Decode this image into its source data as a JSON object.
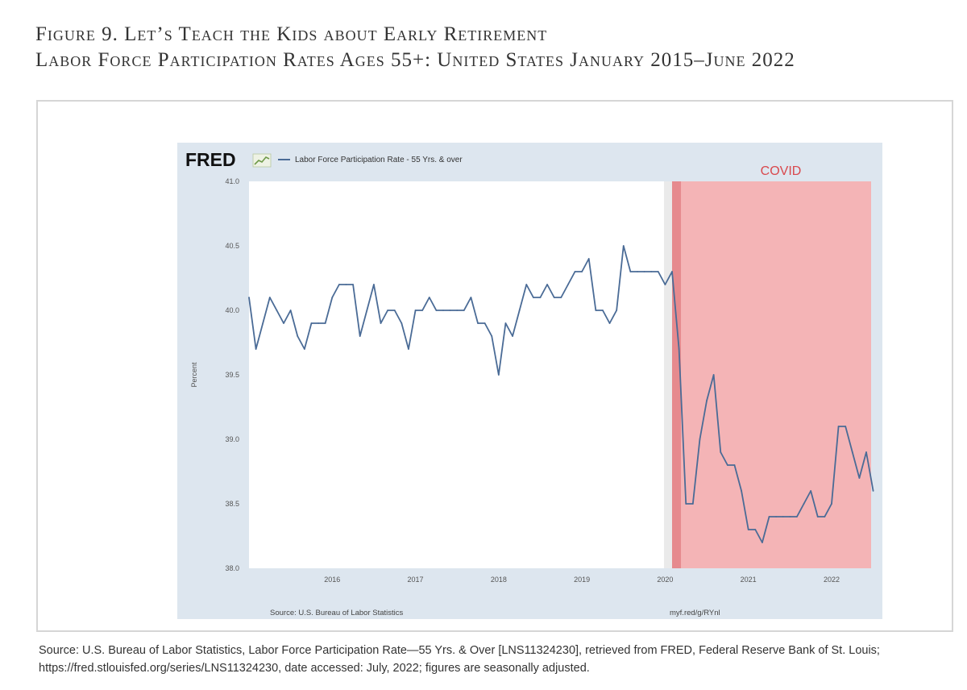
{
  "figure": {
    "title": "Figure 9. Let’s Teach the Kids about Early Retirement",
    "subtitle": "Labor Force Participation Rates Ages 55+: United States January 2015–June 2022",
    "source_note": "Source: U.S. Bureau of Labor Statistics, Labor Force Participation Rate—55 Yrs. & Over [LNS11324230], retrieved from FRED, Federal Reserve Bank of St. Louis; https://fred.stlouisfed.org/series/LNS11324230, date accessed: July, 2022; figures are seasonally adjusted."
  },
  "chart_data": {
    "type": "line",
    "brand": "FRED",
    "title": "",
    "xlabel": "",
    "ylabel": "Percent",
    "ylim": [
      38.0,
      41.0
    ],
    "yticks": [
      "38.0",
      "38.5",
      "39.0",
      "39.5",
      "40.0",
      "40.5",
      "41.0"
    ],
    "xlim": [
      "2015-01",
      "2022-06"
    ],
    "xticks": [
      {
        "label": "2016",
        "date": "2016-01"
      },
      {
        "label": "2017",
        "date": "2017-01"
      },
      {
        "label": "2018",
        "date": "2018-01"
      },
      {
        "label": "2019",
        "date": "2019-01"
      },
      {
        "label": "2020",
        "date": "2020-01"
      },
      {
        "label": "2021",
        "date": "2021-01"
      },
      {
        "label": "2022",
        "date": "2022-01"
      }
    ],
    "grid": false,
    "legend_position": "top-left",
    "series": [
      {
        "name": "Labor Force Participation Rate - 55 Yrs. & over",
        "color": "#4a6b96",
        "x_start": "2015-01",
        "frequency": "monthly",
        "values": [
          40.1,
          39.7,
          39.9,
          40.1,
          40.0,
          39.9,
          40.0,
          39.8,
          39.7,
          39.9,
          39.9,
          39.9,
          40.1,
          40.2,
          40.2,
          40.2,
          39.8,
          40.0,
          40.2,
          39.9,
          40.0,
          40.0,
          39.9,
          39.7,
          40.0,
          40.0,
          40.1,
          40.0,
          40.0,
          40.0,
          40.0,
          40.0,
          40.1,
          39.9,
          39.9,
          39.8,
          39.5,
          39.9,
          39.8,
          40.0,
          40.2,
          40.1,
          40.1,
          40.2,
          40.1,
          40.1,
          40.2,
          40.3,
          40.3,
          40.4,
          40.0,
          40.0,
          39.9,
          40.0,
          40.5,
          40.3,
          40.3,
          40.3,
          40.3,
          40.3,
          40.2,
          40.3,
          39.7,
          38.5,
          38.5,
          39.0,
          39.3,
          39.5,
          38.9,
          38.8,
          38.8,
          38.6,
          38.3,
          38.3,
          38.2,
          38.4,
          38.4,
          38.4,
          38.4,
          38.4,
          38.5,
          38.6,
          38.4,
          38.4,
          38.5,
          39.1,
          39.1,
          38.9,
          38.7,
          38.9,
          38.6
        ]
      }
    ],
    "shaded_region": {
      "label": "COVID",
      "start": "2020-02",
      "end": "2022-06",
      "color": "#f4b4b6",
      "edge_color": "#e68a8e",
      "label_color": "#d9484c"
    },
    "footer_left": "Source: U.S. Bureau of Labor Statistics",
    "footer_right": "myf.red/g/RYnl",
    "panel_color": "#dde6ef",
    "text_color": "#555555"
  }
}
